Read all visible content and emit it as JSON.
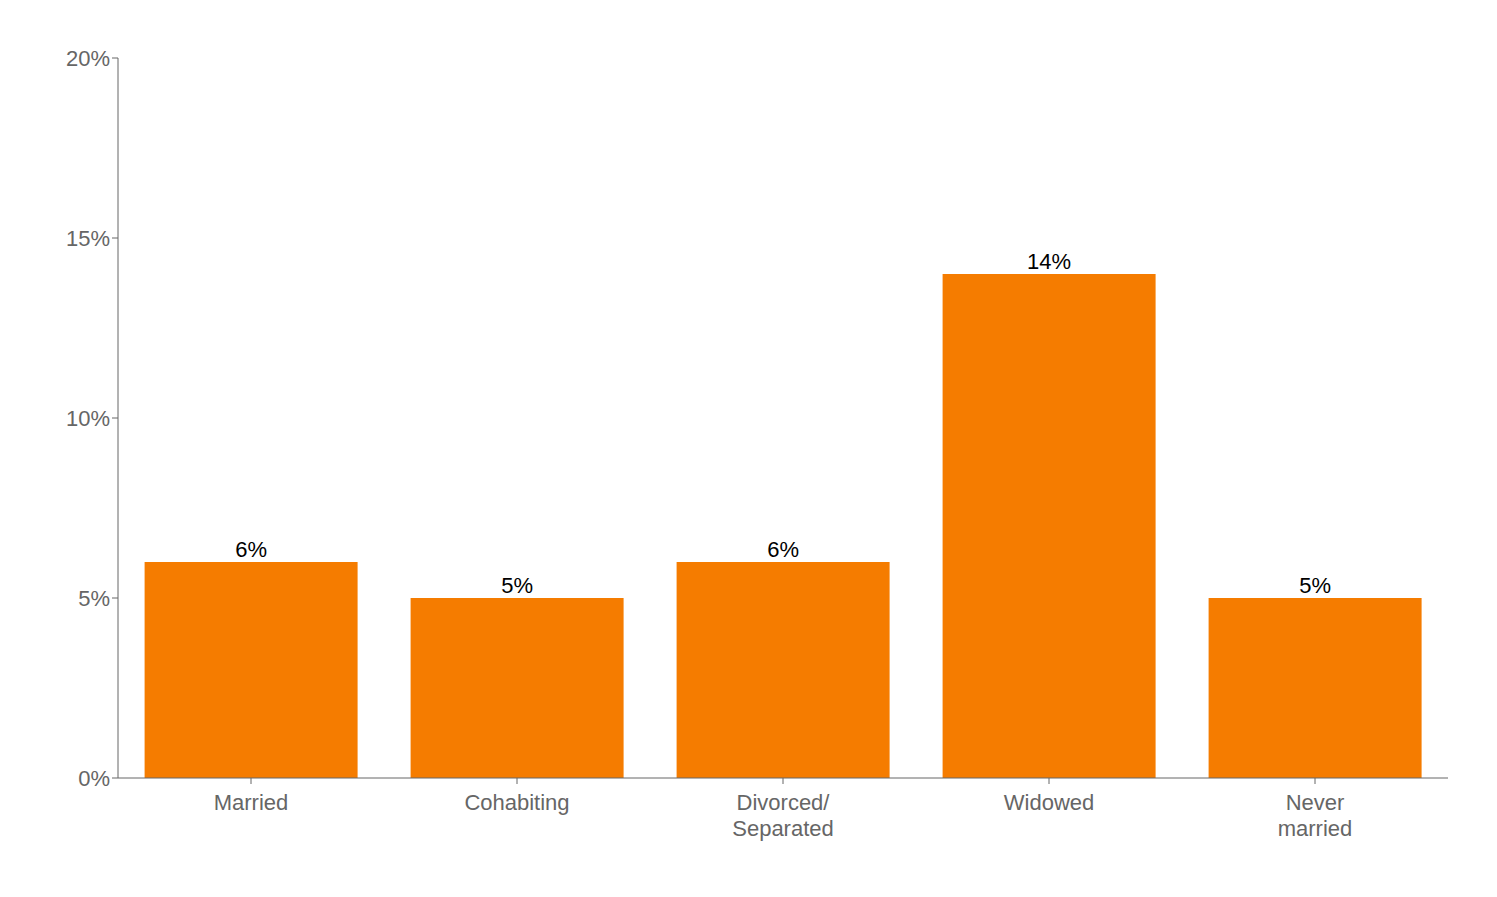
{
  "chart_data": {
    "type": "bar",
    "categories": [
      "Married",
      "Cohabiting",
      "Divorced/\nSeparated",
      "Widowed",
      "Never\nmarried"
    ],
    "values": [
      6,
      5,
      6,
      14,
      5
    ],
    "value_labels": [
      "6%",
      "5%",
      "6%",
      "14%",
      "5%"
    ],
    "data_labels": true,
    "color": "#F57C00",
    "ylim": [
      0,
      20
    ],
    "yticks": [
      {
        "value": 0,
        "label": "0%"
      },
      {
        "value": 5,
        "label": "5%"
      },
      {
        "value": 10,
        "label": "10%"
      },
      {
        "value": 15,
        "label": "15%"
      },
      {
        "value": 20,
        "label": "20%"
      }
    ],
    "grid": false
  }
}
